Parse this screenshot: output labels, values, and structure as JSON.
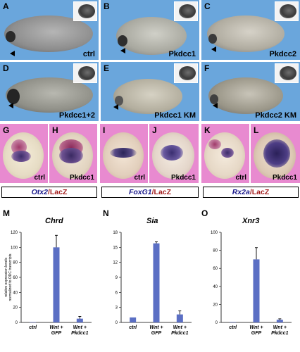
{
  "panels_top": [
    {
      "letter": "A",
      "name": "ctrl"
    },
    {
      "letter": "B",
      "name": "Pkdcc1"
    },
    {
      "letter": "C",
      "name": "Pkdcc2"
    },
    {
      "letter": "D",
      "name": "Pkdcc1+2"
    },
    {
      "letter": "E",
      "name": "Pkdcc1 KM"
    },
    {
      "letter": "F",
      "name": "Pkdcc2 KM"
    }
  ],
  "panels_mid": [
    {
      "letter": "G",
      "name": "ctrl"
    },
    {
      "letter": "H",
      "name": "Pkdcc1"
    },
    {
      "letter": "I",
      "name": "ctrl"
    },
    {
      "letter": "J",
      "name": "Pkdcc1"
    },
    {
      "letter": "K",
      "name": "ctrl"
    },
    {
      "letter": "L",
      "name": "Pkdcc1"
    }
  ],
  "legends": [
    {
      "gene": "Otx2",
      "sep": "/",
      "marker": "LacZ"
    },
    {
      "gene": "FoxG1",
      "sep": "/",
      "marker": "LacZ"
    },
    {
      "gene": "Rx2a",
      "sep": "/",
      "marker": "LacZ"
    }
  ],
  "colors": {
    "bar": "#5b6fc4",
    "blue_bg": "#6aa6dc",
    "pink_bg": "#e88ad0"
  },
  "chart_data": [
    {
      "letter": "M",
      "type": "bar",
      "title": "Chrd",
      "ylabel": "relative expression levels normalized to ODC transcripts",
      "ylim": [
        0,
        120
      ],
      "yticks": [
        0,
        20,
        40,
        60,
        80,
        100,
        120
      ],
      "categories": [
        "ctrl",
        "Wnt + GFP",
        "Wnt + Pkdcc1"
      ],
      "values": [
        0.5,
        100,
        5
      ],
      "errors": [
        0,
        16,
        3
      ]
    },
    {
      "letter": "N",
      "type": "bar",
      "title": "Sia",
      "ylim": [
        0,
        18
      ],
      "yticks": [
        0,
        3,
        6,
        9,
        12,
        15,
        18
      ],
      "categories": [
        "ctrl",
        "Wnt + GFP",
        "Wnt + Pkdcc1"
      ],
      "values": [
        1,
        15.8,
        1.6
      ],
      "errors": [
        0,
        0.3,
        0.7
      ]
    },
    {
      "letter": "O",
      "type": "bar",
      "title": "Xnr3",
      "ylim": [
        0,
        100
      ],
      "yticks": [
        0,
        20,
        40,
        60,
        80,
        100
      ],
      "categories": [
        "ctrl",
        "Wnt + GFP",
        "Wnt + Pkdcc1"
      ],
      "values": [
        0.5,
        70,
        3
      ],
      "errors": [
        0,
        13,
        1
      ]
    }
  ]
}
